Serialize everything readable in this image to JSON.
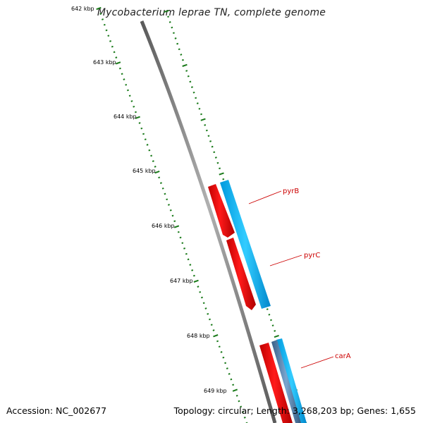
{
  "title": "Mycobacterium leprae TN, complete genome",
  "footer": {
    "accession": "Accession: NC_002677",
    "summary": "Topology: circular; Length: 3,268,203 bp; Genes: 1,655"
  },
  "scale": {
    "labels": [
      "642 kbp",
      "643 kbp",
      "644 kbp",
      "645 kbp",
      "646 kbp",
      "647 kbp",
      "648 kbp",
      "649 kbp"
    ]
  },
  "genes": [
    {
      "name": "pyrB"
    },
    {
      "name": "pyrC"
    },
    {
      "name": "carA"
    }
  ],
  "colors": {
    "forward_gene": "#ff0000",
    "cds": "#00bfff",
    "backbone": "#808080",
    "tick": "#1a7a1a",
    "label": "#cc0000"
  }
}
